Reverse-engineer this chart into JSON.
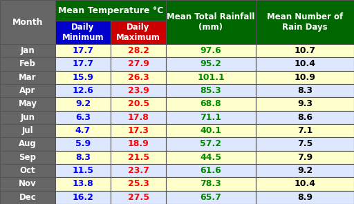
{
  "months": [
    "Jan",
    "Feb",
    "Mar",
    "Apr",
    "May",
    "Jun",
    "Jul",
    "Aug",
    "Sep",
    "Oct",
    "Nov",
    "Dec"
  ],
  "daily_min": [
    17.7,
    17.7,
    15.9,
    12.6,
    9.2,
    6.3,
    4.7,
    5.9,
    8.3,
    11.5,
    13.8,
    16.2
  ],
  "daily_max": [
    28.2,
    27.9,
    26.3,
    23.9,
    20.5,
    17.8,
    17.3,
    18.9,
    21.5,
    23.7,
    25.3,
    27.5
  ],
  "rainfall": [
    97.6,
    95.2,
    101.1,
    85.3,
    68.8,
    71.1,
    40.1,
    57.2,
    44.5,
    61.6,
    78.3,
    65.7
  ],
  "rain_days": [
    10.7,
    10.4,
    10.9,
    8.3,
    9.3,
    8.6,
    7.1,
    7.5,
    7.9,
    9.2,
    10.4,
    8.9
  ],
  "col_header_bg": "#006600",
  "col_header_text": "#ffffff",
  "month_col_bg": "#666666",
  "month_col_text": "#ffffff",
  "min_col_bg": "#0000cc",
  "max_col_bg": "#cc0000",
  "row_bg_odd": "#ffffcc",
  "row_bg_even": "#dde8ff",
  "min_text_color": "#0000ff",
  "max_text_color": "#ff0000",
  "rainfall_text_color": "#008800",
  "rain_days_text_color": "#000000",
  "border_color": "#555555",
  "fig_width": 5.12,
  "fig_height": 2.96,
  "dpi": 100
}
